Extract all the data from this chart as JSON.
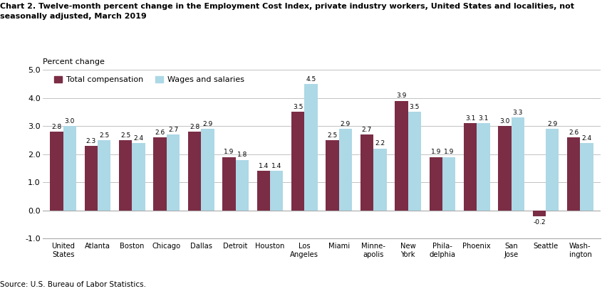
{
  "title_line1": "Chart 2. Twelve-month percent change in the Employment Cost Index, private industry workers, United States and localities, not",
  "title_line2": "seasonally adjusted, March 2019",
  "ylabel": "Percent change",
  "source": "Source: U.S. Bureau of Labor Statistics.",
  "categories": [
    "United\nStates",
    "Atlanta",
    "Boston",
    "Chicago",
    "Dallas",
    "Detroit",
    "Houston",
    "Los\nAngeles",
    "Miami",
    "Minne-\napolis",
    "New\nYork",
    "Phila-\ndelphia",
    "Phoenix",
    "San\nJose",
    "Seattle",
    "Wash-\nington"
  ],
  "total_compensation": [
    2.8,
    2.3,
    2.5,
    2.6,
    2.8,
    1.9,
    1.4,
    3.5,
    2.5,
    2.7,
    3.9,
    1.9,
    3.1,
    3.0,
    -0.2,
    2.6
  ],
  "wages_and_salaries": [
    3.0,
    2.5,
    2.4,
    2.7,
    2.9,
    1.8,
    1.4,
    4.5,
    2.9,
    2.2,
    3.5,
    1.9,
    3.1,
    3.3,
    2.9,
    2.4
  ],
  "color_total": "#7B2D45",
  "color_wages": "#ADD8E6",
  "ylim": [
    -1.0,
    5.0
  ],
  "yticks": [
    -1.0,
    0.0,
    1.0,
    2.0,
    3.0,
    4.0,
    5.0
  ],
  "legend_labels": [
    "Total compensation",
    "Wages and salaries"
  ],
  "bar_width": 0.38
}
